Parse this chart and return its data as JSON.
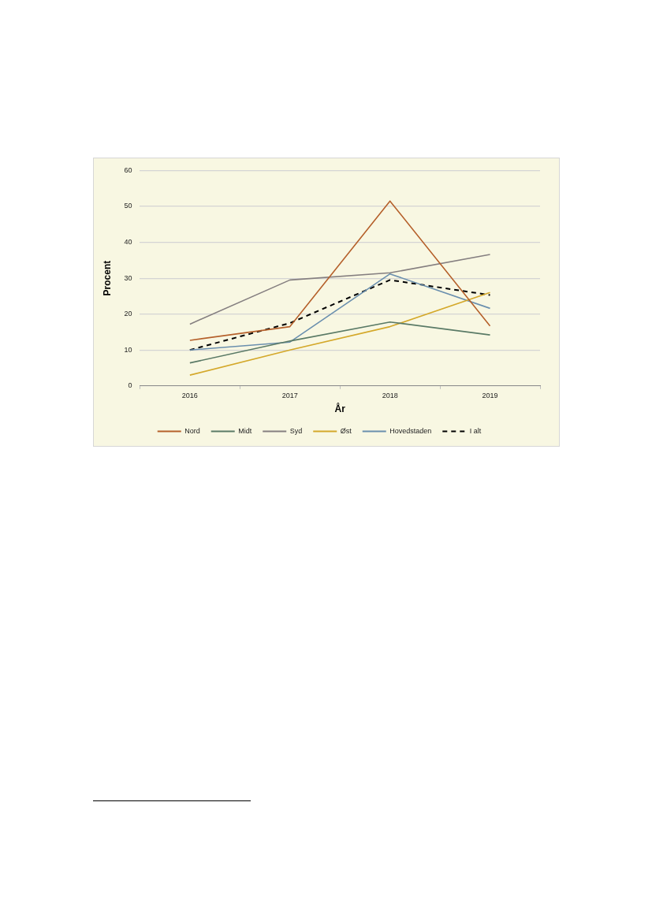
{
  "chart_data": {
    "type": "line",
    "xlabel": "År",
    "ylabel": "Procent",
    "categories": [
      "2016",
      "2017",
      "2018",
      "2019"
    ],
    "ylim": [
      0,
      60
    ],
    "yticks": [
      0,
      10,
      20,
      30,
      40,
      50,
      60
    ],
    "grid": "y",
    "legend": "bottom",
    "marker": "none",
    "series": [
      {
        "name": "Nord",
        "color": "#b5602b",
        "values": [
          12.7,
          16.5,
          51.5,
          16.7
        ]
      },
      {
        "name": "Midt",
        "color": "#5a7a66",
        "values": [
          6.4,
          12.5,
          17.8,
          14.2
        ]
      },
      {
        "name": "Syd",
        "color": "#857f80",
        "values": [
          17.2,
          29.5,
          31.5,
          36.6
        ]
      },
      {
        "name": "Øst",
        "color": "#d4a82a",
        "values": [
          3.0,
          10.0,
          16.5,
          26.0
        ]
      },
      {
        "name": "Hovedstaden",
        "color": "#6a8fae",
        "values": [
          10.0,
          12.2,
          31.2,
          21.6
        ]
      },
      {
        "name": "I alt",
        "color": "#000000",
        "values": [
          10.0,
          17.5,
          29.5,
          25.3
        ],
        "line_style": "dashed"
      }
    ]
  }
}
